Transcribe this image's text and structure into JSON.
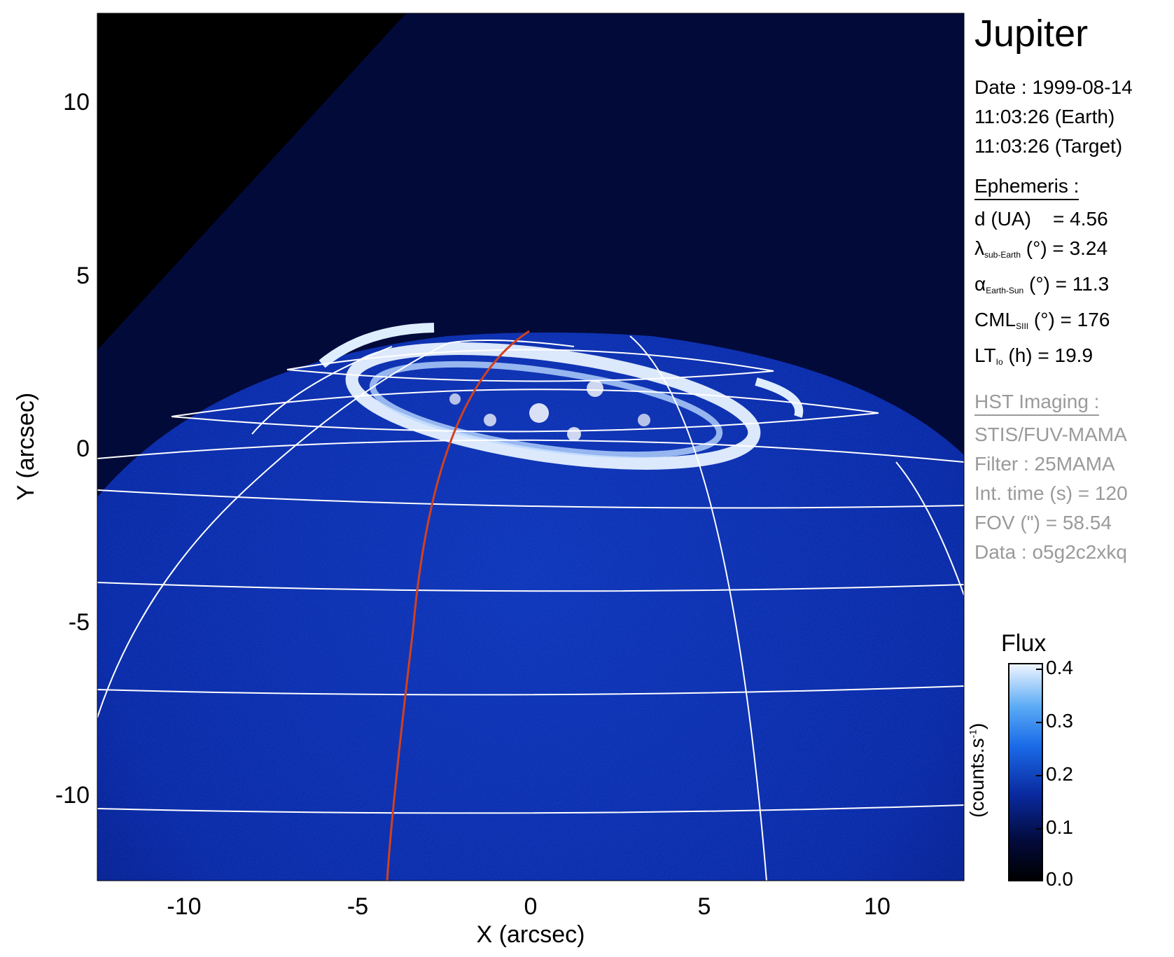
{
  "figure": {
    "title": "Jupiter",
    "x_axis": {
      "label": "X (arcsec)",
      "ticks": [
        "-10",
        "-5",
        "0",
        "5",
        "10"
      ],
      "tick_values": [
        -10,
        -5,
        0,
        5,
        10
      ],
      "range": [
        -12.5,
        12.5
      ]
    },
    "y_axis": {
      "label": "Y (arcsec)",
      "ticks": [
        "10",
        "5",
        "0",
        "-5",
        "-10"
      ],
      "tick_values": [
        10,
        5,
        0,
        -5,
        -10
      ],
      "range": [
        -12.5,
        12.5
      ]
    }
  },
  "info": {
    "date_line": "Date : 1999-08-14",
    "earth_time": "11:03:26 (Earth)",
    "target_time": "11:03:26 (Target)",
    "ephemeris_header": "Ephemeris :",
    "distance": "d (UA)    = 4.56",
    "lat_symbol": "λ",
    "lat_sub": "sub-Earth",
    "lat_rest": " (°) = 3.24",
    "phase_symbol": "α",
    "phase_sub": "Earth-Sun",
    "phase_rest": " (°) = 11.3",
    "cml_symbol": "CML",
    "cml_sub": "SIII",
    "cml_rest": " (°) = 176",
    "lt_symbol": "LT",
    "lt_sub": "Io",
    "lt_rest": " (h) = 19.9",
    "hst_header": "HST Imaging :",
    "instrument": "STIS/FUV-MAMA",
    "filter": "Filter : 25MAMA",
    "int_time": "Int. time (s) = 120",
    "fov": "FOV (\") = 58.54",
    "data_id": "Data : o5g2c2xkq"
  },
  "colorbar": {
    "title": "Flux",
    "unit_main": "(counts.s",
    "unit_sup": "-1",
    "unit_close": ")",
    "ticks": [
      "0.4",
      "0.3",
      "0.2",
      "0.1",
      "0.0"
    ],
    "tick_values": [
      0.4,
      0.3,
      0.2,
      0.1,
      0.0
    ]
  },
  "colors": {
    "background_black": "#000000",
    "disk_blue": "#0a28a0",
    "aurora": "#e8f2ff",
    "grid": "#ffffff",
    "meridian": "#d2411e"
  }
}
